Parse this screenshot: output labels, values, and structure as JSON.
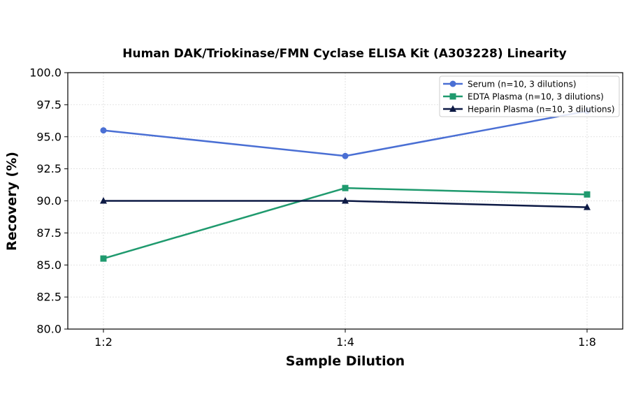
{
  "chart_data": {
    "type": "line",
    "title": "Human DAK/Triokinase/FMN Cyclase ELISA Kit (A303228) Linearity",
    "xlabel": "Sample Dilution",
    "ylabel": "Recovery (%)",
    "categories": [
      "1:2",
      "1:4",
      "1:8"
    ],
    "ylim": [
      80.0,
      100.0
    ],
    "yticks": [
      "80.0",
      "82.5",
      "85.0",
      "87.5",
      "90.0",
      "92.5",
      "95.0",
      "97.5",
      "100.0"
    ],
    "grid": true,
    "legend_position": "top-right",
    "series": [
      {
        "name": "Serum (n=10, 3 dilutions)",
        "values": [
          95.5,
          93.5,
          97.0
        ],
        "color": "#4a6fd4",
        "marker": "circle"
      },
      {
        "name": "EDTA Plasma (n=10, 3 dilutions)",
        "values": [
          85.5,
          91.0,
          90.5
        ],
        "color": "#1f9a6e",
        "marker": "square"
      },
      {
        "name": "Heparin Plasma (n=10, 3 dilutions)",
        "values": [
          90.0,
          90.0,
          89.5
        ],
        "color": "#0d1a45",
        "marker": "triangle"
      }
    ]
  }
}
